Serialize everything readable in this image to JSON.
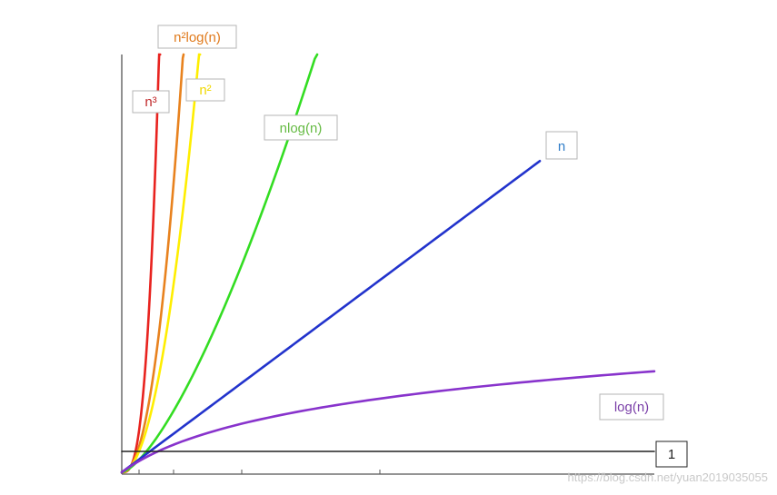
{
  "chart_data": {
    "type": "line",
    "title": "",
    "xlabel": "",
    "ylabel": "",
    "grid": false,
    "legend": "inline labels at curve ends",
    "x_range": [
      0,
      10
    ],
    "y_range": [
      0,
      10
    ],
    "series": [
      {
        "name": "n³",
        "formula": "n^3",
        "color": "#e8231f"
      },
      {
        "name": "n²log(n)",
        "formula": "n^2*log(n)",
        "color": "#e8821e"
      },
      {
        "name": "n²",
        "formula": "n^2",
        "color": "#ffee00"
      },
      {
        "name": "nlog(n)",
        "formula": "n*log(n)",
        "color": "#33dd22"
      },
      {
        "name": "n",
        "formula": "n",
        "color": "#2233cc"
      },
      {
        "name": "log(n)",
        "formula": "log(n)",
        "color": "#8833cc"
      },
      {
        "name": "1",
        "formula": "1",
        "color": "#222222"
      }
    ],
    "label_colors": {
      "n³": "#c0282a",
      "n²log(n)": "#e07a1c",
      "n²": "#f0d800",
      "nlog(n)": "#66bb44",
      "n": "#2f7dc8",
      "log(n)": "#7a3fa8",
      "1": "#222222"
    }
  },
  "watermark": "https://blog.csdn.net/yuan2019035055"
}
